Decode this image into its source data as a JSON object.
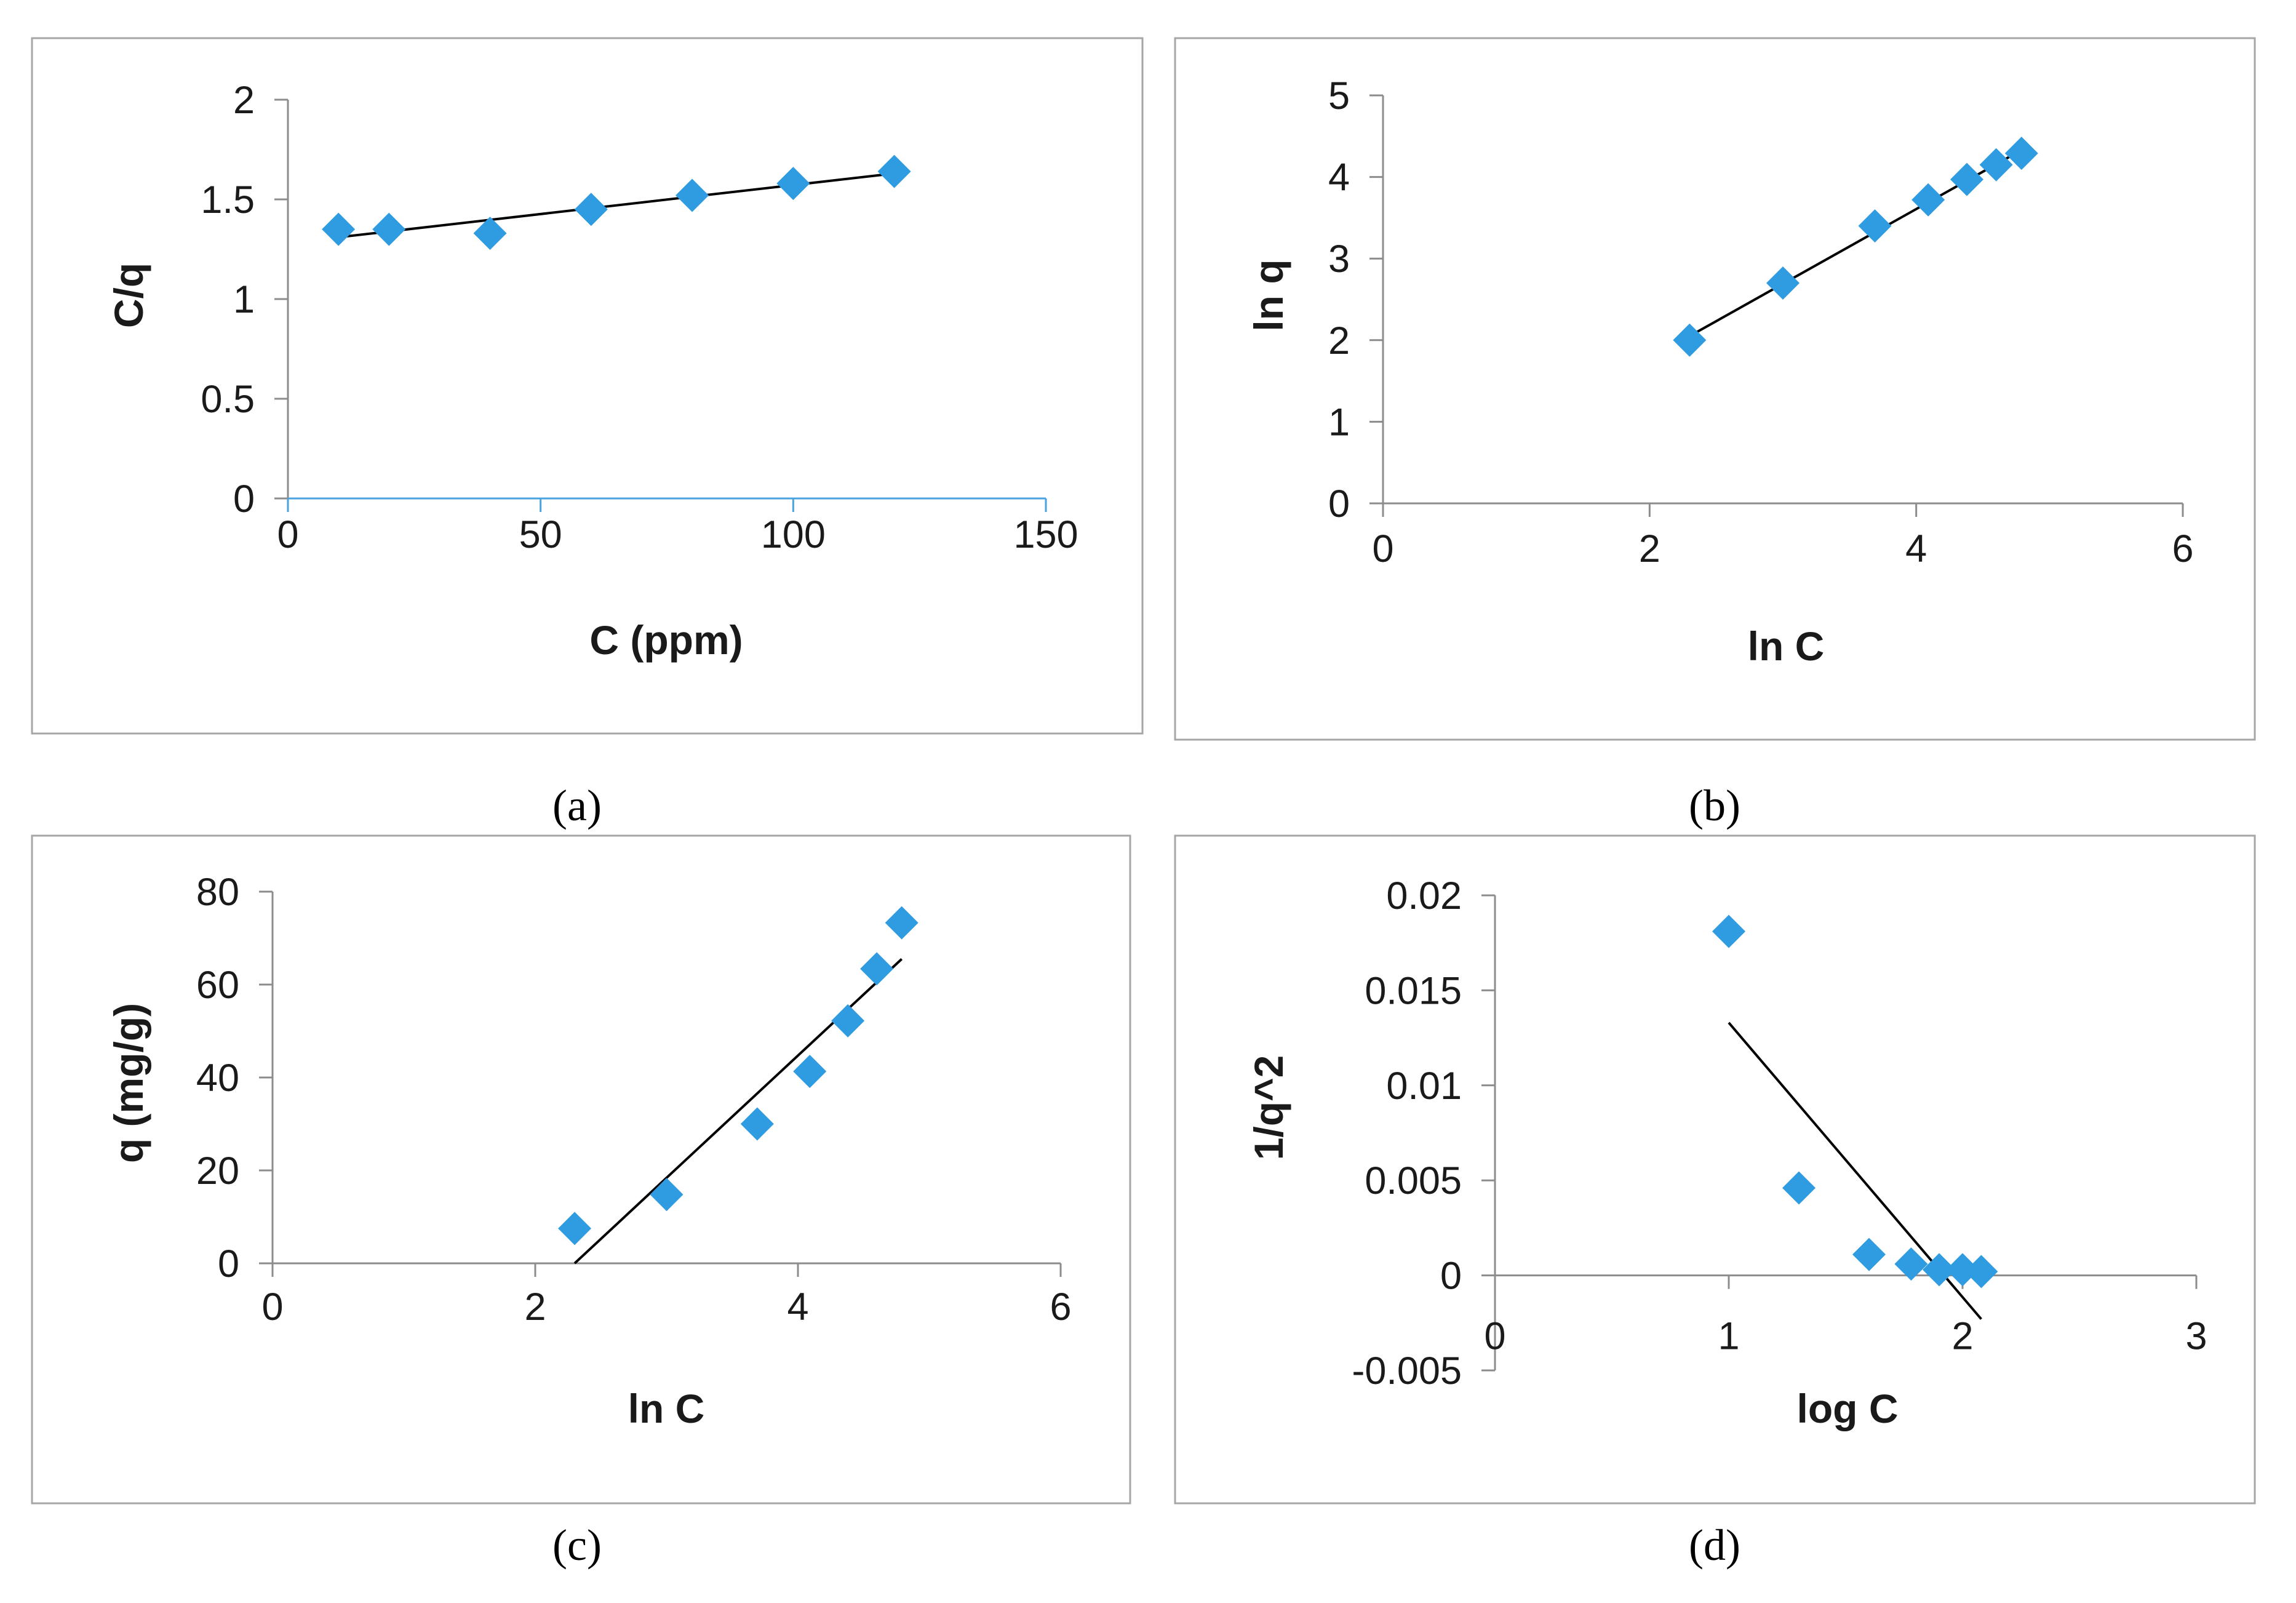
{
  "figure": {
    "captions": [
      "(a)",
      "(b)",
      "(c)",
      "(d)"
    ],
    "marker_color": "#2f9be0",
    "trendline_color": "#000000"
  },
  "chart_data": [
    {
      "id": "a",
      "type": "scatter",
      "caption": "(a)",
      "xlabel": "C (ppm)",
      "ylabel": "C/q",
      "xlim": [
        0,
        150
      ],
      "ylim": [
        0,
        2
      ],
      "xticks": [
        0,
        50,
        100,
        150
      ],
      "yticks": [
        0,
        0.5,
        1,
        1.5,
        2
      ],
      "xtick_labels": [
        "0",
        "50",
        "100",
        "150"
      ],
      "ytick_labels": [
        "0",
        "0.5",
        "1",
        "1.5",
        "2"
      ],
      "series": [
        {
          "name": "data",
          "x": [
            10,
            20,
            40,
            60,
            80,
            100,
            120
          ],
          "y": [
            1.35,
            1.35,
            1.33,
            1.45,
            1.52,
            1.58,
            1.64
          ]
        }
      ],
      "trendline": {
        "x": [
          10,
          120
        ],
        "y": [
          1.31,
          1.63
        ]
      }
    },
    {
      "id": "b",
      "type": "scatter",
      "caption": "(b)",
      "xlabel": "ln C",
      "ylabel": "ln q",
      "xlim": [
        0,
        6
      ],
      "ylim": [
        0,
        5
      ],
      "xticks": [
        0,
        2,
        4,
        6
      ],
      "yticks": [
        0,
        1,
        2,
        3,
        4,
        5
      ],
      "xtick_labels": [
        "0",
        "2",
        "4",
        "6"
      ],
      "ytick_labels": [
        "0",
        "1",
        "2",
        "3",
        "4",
        "5"
      ],
      "series": [
        {
          "name": "data",
          "x": [
            2.3,
            3.0,
            3.69,
            4.09,
            4.38,
            4.6,
            4.79
          ],
          "y": [
            2.0,
            2.7,
            3.4,
            3.72,
            3.97,
            4.15,
            4.29
          ]
        }
      ],
      "trendline": {
        "x": [
          2.3,
          4.79
        ],
        "y": [
          2.05,
          4.33
        ]
      }
    },
    {
      "id": "c",
      "type": "scatter",
      "caption": "(c)",
      "xlabel": "ln C",
      "ylabel": "q (mg/g)",
      "xlim": [
        0,
        6
      ],
      "ylim": [
        0,
        80
      ],
      "xticks": [
        0,
        2,
        4,
        6
      ],
      "yticks": [
        0,
        20,
        40,
        60,
        80
      ],
      "xtick_labels": [
        "0",
        "2",
        "4",
        "6"
      ],
      "ytick_labels": [
        "0",
        "20",
        "40",
        "60",
        "80"
      ],
      "series": [
        {
          "name": "data",
          "x": [
            2.3,
            3.0,
            3.69,
            4.09,
            4.38,
            4.6,
            4.79
          ],
          "y": [
            7.5,
            14.8,
            30,
            41.3,
            52.2,
            63.4,
            73.3
          ]
        }
      ],
      "trendline": {
        "x": [
          2.3,
          4.79
        ],
        "y": [
          0,
          65.5
        ]
      }
    },
    {
      "id": "d",
      "type": "scatter",
      "caption": "(d)",
      "xlabel": "log C",
      "ylabel": "1/q^2",
      "xlim": [
        0,
        3
      ],
      "ylim": [
        -0.005,
        0.02
      ],
      "xticks": [
        0,
        1,
        2,
        3
      ],
      "yticks": [
        -0.005,
        0,
        0.005,
        0.01,
        0.015,
        0.02
      ],
      "xtick_labels": [
        "0",
        "1",
        "2",
        "3"
      ],
      "ytick_labels": [
        "-0.005",
        "0",
        "0.005",
        "0.01",
        "0.015",
        "0.02"
      ],
      "series": [
        {
          "name": "data",
          "x": [
            1.0,
            1.3,
            1.6,
            1.78,
            1.9,
            2.0,
            2.08
          ],
          "y": [
            0.0181,
            0.0046,
            0.0011,
            0.0006,
            0.0003,
            0.0003,
            0.0002
          ]
        }
      ],
      "trendline": {
        "x": [
          1.0,
          2.08
        ],
        "y": [
          0.0133,
          -0.0023
        ]
      }
    }
  ]
}
